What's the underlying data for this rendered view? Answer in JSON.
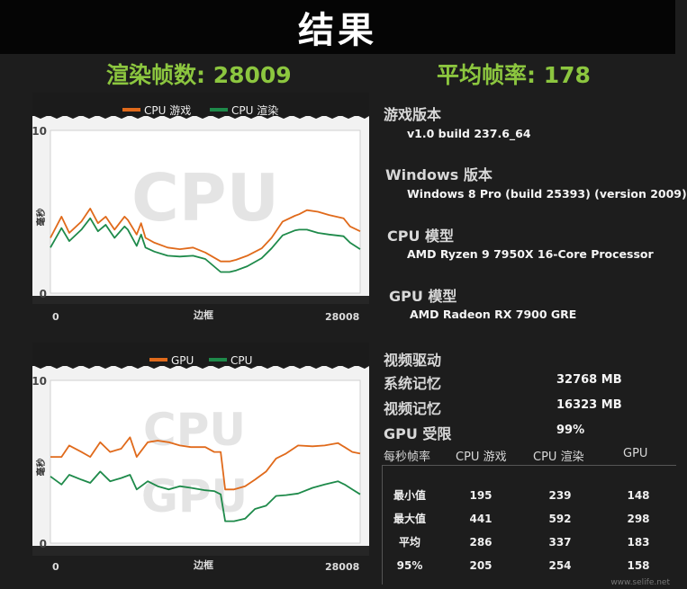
{
  "title": "结果",
  "stats": {
    "frames_label": "渲染帧数: 28009",
    "avg_label": "平均帧率: 178"
  },
  "info": {
    "game_version_label": "游戏版本",
    "game_version_value": "v1.0 build 237.6_64",
    "windows_label": "Windows 版本",
    "windows_value": "Windows 8 Pro (build 25393) (version 2009)",
    "cpu_label": "CPU 模型",
    "cpu_value": "AMD Ryzen 9 7950X 16-Core Processor",
    "gpu_label": "GPU 模型",
    "gpu_value": "AMD Radeon RX 7900 GRE",
    "driver_label": "视频驱动",
    "sysmem_label": "系统记忆",
    "sysmem_value": "32768 MB",
    "vidmem_label": "视频记忆",
    "vidmem_value": "16323 MB",
    "gpubound_label": "GPU 受限",
    "gpubound_value": "99%"
  },
  "fps_table": {
    "headers": [
      "每秒帧率",
      "CPU 游戏",
      "CPU 渲染",
      "GPU"
    ],
    "rows": [
      {
        "label": "最小值",
        "values": [
          "195",
          "239",
          "148"
        ]
      },
      {
        "label": "最大值",
        "values": [
          "441",
          "592",
          "298"
        ]
      },
      {
        "label": "平均",
        "values": [
          "286",
          "337",
          "183"
        ]
      },
      {
        "label": "95%",
        "values": [
          "205",
          "254",
          "158"
        ]
      }
    ]
  },
  "colors": {
    "accent_green": "#8cc63f",
    "series_orange": "#e06a1b",
    "series_green": "#1e8a4a"
  },
  "watermark": "www.selife.net",
  "chart_data": [
    {
      "type": "line",
      "watermark": "CPU",
      "legend_position": "top-center",
      "ytick_labels": [
        "10",
        "0"
      ],
      "xtick_labels": [
        "0",
        "28008"
      ],
      "xlabel": "边框",
      "ylabel": "毫秒",
      "xlim": [
        0,
        28008
      ],
      "ylim": [
        0,
        10
      ],
      "series": [
        {
          "name": "CPU 游戏",
          "color": "#e06a1b",
          "x": [
            0,
            1000,
            1700,
            2800,
            3600,
            4300,
            5000,
            5800,
            6700,
            7000,
            7800,
            8200,
            8600,
            9400,
            10600,
            11700,
            12900,
            14000,
            15400,
            16200,
            16800,
            17800,
            19100,
            20000,
            21000,
            22100,
            22500,
            23200,
            24200,
            25200,
            26500,
            27100,
            28008
          ],
          "values": [
            3.4,
            4.7,
            3.7,
            4.4,
            5.2,
            4.3,
            4.7,
            3.9,
            4.7,
            4.5,
            3.6,
            4.3,
            3.4,
            3.1,
            2.8,
            2.7,
            2.8,
            2.5,
            1.95,
            1.95,
            2.05,
            2.3,
            2.75,
            3.4,
            4.4,
            4.75,
            4.85,
            5.1,
            5.0,
            4.8,
            4.6,
            4.1,
            3.8
          ]
        },
        {
          "name": "CPU 渲染",
          "color": "#1e8a4a",
          "x": [
            0,
            1000,
            1700,
            2800,
            3600,
            4300,
            5000,
            5800,
            6700,
            7000,
            7800,
            8200,
            8600,
            9400,
            10600,
            11700,
            12900,
            14000,
            15400,
            16200,
            16800,
            17800,
            19100,
            20000,
            21000,
            22100,
            22500,
            23200,
            24200,
            25200,
            26500,
            27100,
            28008
          ],
          "values": [
            2.8,
            4.0,
            3.2,
            3.9,
            4.6,
            3.8,
            4.2,
            3.4,
            4.1,
            3.9,
            2.9,
            3.6,
            2.8,
            2.55,
            2.3,
            2.25,
            2.3,
            2.1,
            1.3,
            1.3,
            1.4,
            1.65,
            2.15,
            2.75,
            3.55,
            3.85,
            3.9,
            3.9,
            3.7,
            3.6,
            3.5,
            3.1,
            2.7
          ]
        }
      ]
    },
    {
      "type": "line",
      "watermark": "CPU GPU",
      "legend_position": "top-center",
      "ytick_labels": [
        "10",
        "0"
      ],
      "xtick_labels": [
        "0",
        "28008"
      ],
      "xlabel": "边框",
      "ylabel": "毫秒",
      "xlim": [
        0,
        28008
      ],
      "ylim": [
        0,
        10
      ],
      "series": [
        {
          "name": "GPU",
          "color": "#e06a1b",
          "x": [
            0,
            1000,
            1700,
            2800,
            3600,
            4500,
            5400,
            6400,
            7200,
            7800,
            8800,
            9700,
            10700,
            11700,
            12700,
            14000,
            14800,
            15400,
            15800,
            16600,
            17600,
            18500,
            19500,
            20400,
            21300,
            22400,
            23700,
            24800,
            26000,
            26600,
            27300,
            28008
          ],
          "values": [
            5.3,
            5.3,
            6.0,
            5.6,
            5.3,
            6.2,
            5.6,
            5.8,
            6.5,
            5.3,
            6.2,
            6.3,
            6.2,
            6.0,
            5.9,
            5.9,
            5.6,
            5.6,
            3.3,
            3.3,
            3.5,
            3.9,
            4.4,
            5.2,
            5.5,
            6.0,
            5.95,
            6.0,
            6.15,
            5.9,
            5.6,
            5.5
          ]
        },
        {
          "name": "CPU",
          "color": "#1e8a4a",
          "x": [
            0,
            1000,
            1700,
            2800,
            3600,
            4500,
            5400,
            6400,
            7200,
            7800,
            8800,
            9700,
            10700,
            11700,
            12700,
            14000,
            14800,
            15400,
            15800,
            16600,
            17600,
            18500,
            19500,
            20400,
            21300,
            22400,
            23700,
            24800,
            26000,
            26600,
            27300,
            28008
          ],
          "values": [
            4.1,
            3.6,
            4.2,
            3.9,
            3.7,
            4.4,
            3.8,
            4.0,
            4.2,
            3.3,
            3.8,
            3.5,
            3.3,
            3.5,
            3.4,
            3.25,
            3.2,
            3.0,
            1.35,
            1.35,
            1.5,
            2.1,
            2.3,
            2.9,
            2.95,
            3.05,
            3.4,
            3.6,
            3.8,
            3.6,
            3.3,
            3.0
          ]
        }
      ]
    }
  ]
}
